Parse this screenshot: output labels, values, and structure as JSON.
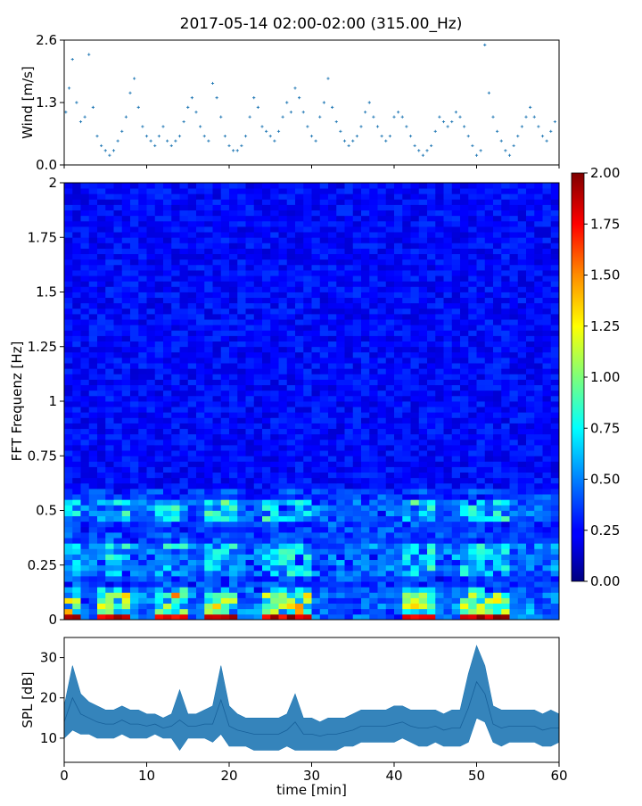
{
  "title": "2017-05-14 02:00-02:00 (315.00_Hz)",
  "chart_data": [
    {
      "type": "scatter",
      "ylabel": "Wind [m/s]",
      "xlim": [
        0,
        60
      ],
      "ylim": [
        0.0,
        2.6
      ],
      "yticks": [
        "0.0",
        "1.3",
        "2.6"
      ],
      "color": "#1f77b4",
      "x": [
        0.2,
        0.6,
        1.0,
        1.5,
        2.0,
        2.5,
        3.0,
        3.5,
        4.0,
        4.5,
        5.0,
        5.5,
        6.0,
        6.5,
        7.0,
        7.5,
        8.0,
        8.5,
        9.0,
        9.5,
        10.0,
        10.5,
        11.0,
        11.5,
        12.0,
        12.5,
        13.0,
        13.5,
        14.0,
        14.5,
        15.0,
        15.5,
        16.0,
        16.5,
        17.0,
        17.5,
        18.0,
        18.5,
        19.0,
        19.5,
        20.0,
        20.5,
        21.0,
        21.5,
        22.0,
        22.5,
        23.0,
        23.5,
        24.0,
        24.5,
        25.0,
        25.5,
        26.0,
        26.5,
        27.0,
        27.5,
        28.0,
        28.5,
        29.0,
        29.5,
        30.0,
        30.5,
        31.0,
        31.5,
        32.0,
        32.5,
        33.0,
        33.5,
        34.0,
        34.5,
        35.0,
        35.5,
        36.0,
        36.5,
        37.0,
        37.5,
        38.0,
        38.5,
        39.0,
        39.5,
        40.0,
        40.5,
        41.0,
        41.5,
        42.0,
        42.5,
        43.0,
        43.5,
        44.0,
        44.5,
        45.0,
        45.5,
        46.0,
        46.5,
        47.0,
        47.5,
        48.0,
        48.5,
        49.0,
        49.5,
        50.0,
        50.5,
        51.0,
        51.5,
        52.0,
        52.5,
        53.0,
        53.5,
        54.0,
        54.5,
        55.0,
        55.5,
        56.0,
        56.5,
        57.0,
        57.5,
        58.0,
        58.5,
        59.0,
        59.5
      ],
      "y": [
        1.1,
        1.6,
        2.2,
        1.3,
        0.9,
        1.0,
        2.3,
        1.2,
        0.6,
        0.4,
        0.3,
        0.2,
        0.3,
        0.5,
        0.7,
        1.0,
        1.5,
        1.8,
        1.2,
        0.8,
        0.6,
        0.5,
        0.4,
        0.6,
        0.8,
        0.5,
        0.4,
        0.5,
        0.6,
        0.9,
        1.2,
        1.4,
        1.1,
        0.8,
        0.6,
        0.5,
        1.7,
        1.4,
        1.0,
        0.6,
        0.4,
        0.3,
        0.3,
        0.4,
        0.6,
        1.0,
        1.4,
        1.2,
        0.8,
        0.7,
        0.6,
        0.5,
        0.7,
        1.0,
        1.3,
        1.1,
        1.6,
        1.4,
        1.1,
        0.8,
        0.6,
        0.5,
        1.0,
        1.3,
        1.8,
        1.2,
        0.9,
        0.7,
        0.5,
        0.4,
        0.5,
        0.6,
        0.8,
        1.1,
        1.3,
        1.0,
        0.8,
        0.6,
        0.5,
        0.6,
        1.0,
        1.1,
        1.0,
        0.8,
        0.6,
        0.4,
        0.3,
        0.2,
        0.3,
        0.4,
        0.7,
        1.0,
        0.9,
        0.8,
        0.9,
        1.1,
        1.0,
        0.8,
        0.6,
        0.4,
        0.2,
        0.3,
        2.5,
        1.5,
        1.0,
        0.7,
        0.5,
        0.3,
        0.2,
        0.4,
        0.6,
        0.8,
        1.0,
        1.2,
        1.0,
        0.8,
        0.6,
        0.5,
        0.7,
        0.9
      ]
    },
    {
      "type": "heatmap",
      "ylabel": "FFT Frequenz [Hz]",
      "xlim": [
        0,
        60
      ],
      "ylim": [
        0,
        2
      ],
      "yticks": [
        "0",
        "0.25",
        "0.5",
        "0.75",
        "1",
        "1.25",
        "1.5",
        "1.75",
        "2"
      ],
      "colormap": "jet",
      "colorbar": {
        "min": 0.0,
        "max": 2.0,
        "ticks": [
          "0.00",
          "0.25",
          "0.50",
          "0.75",
          "1.00",
          "1.25",
          "1.50",
          "1.75",
          "2.00"
        ]
      },
      "bright_time_spans_min": [
        [
          0,
          2
        ],
        [
          4,
          7.5
        ],
        [
          11.5,
          14.5
        ],
        [
          17,
          21
        ],
        [
          24,
          30
        ],
        [
          41.5,
          44.5
        ],
        [
          48,
          53.5
        ]
      ],
      "bright_freq_bands_hz": [
        [
          0.45,
          0.55
        ],
        [
          0.2,
          0.35
        ],
        [
          0.0,
          0.15
        ]
      ]
    },
    {
      "type": "area",
      "ylabel": "SPL [dB]",
      "xlabel": "time [min]",
      "xlim": [
        0,
        60
      ],
      "ylim": [
        4,
        35
      ],
      "yticks": [
        "10",
        "20",
        "30"
      ],
      "xticks": [
        "0",
        "10",
        "20",
        "30",
        "40",
        "50",
        "60"
      ],
      "color": "#1f77b4",
      "x": [
        0,
        1,
        2,
        3,
        4,
        5,
        6,
        7,
        8,
        9,
        10,
        11,
        12,
        13,
        14,
        15,
        16,
        17,
        18,
        19,
        20,
        21,
        22,
        23,
        24,
        25,
        26,
        27,
        28,
        29,
        30,
        31,
        32,
        33,
        34,
        35,
        36,
        37,
        38,
        39,
        40,
        41,
        42,
        43,
        44,
        45,
        46,
        47,
        48,
        49,
        50,
        51,
        52,
        53,
        54,
        55,
        56,
        57,
        58,
        59,
        60
      ],
      "low": [
        10,
        12,
        11,
        11,
        10,
        10,
        10,
        11,
        10,
        10,
        10,
        11,
        10,
        10,
        7,
        10,
        10,
        10,
        9,
        11,
        8,
        8,
        8,
        7,
        7,
        7,
        7,
        8,
        7,
        7,
        7,
        7,
        7,
        7,
        8,
        8,
        9,
        9,
        9,
        9,
        9,
        10,
        9,
        8,
        8,
        9,
        8,
        8,
        8,
        9,
        15,
        14,
        9,
        8,
        9,
        9,
        9,
        9,
        8,
        8,
        9
      ],
      "high": [
        18,
        28,
        21,
        19,
        18,
        17,
        17,
        18,
        17,
        17,
        16,
        16,
        15,
        16,
        22,
        16,
        16,
        17,
        18,
        28,
        18,
        16,
        15,
        15,
        15,
        15,
        15,
        16,
        21,
        15,
        15,
        14,
        15,
        15,
        15,
        16,
        17,
        17,
        17,
        17,
        18,
        18,
        17,
        17,
        17,
        17,
        16,
        17,
        17,
        26,
        33,
        28,
        18,
        17,
        17,
        17,
        17,
        17,
        16,
        17,
        16
      ]
    }
  ]
}
